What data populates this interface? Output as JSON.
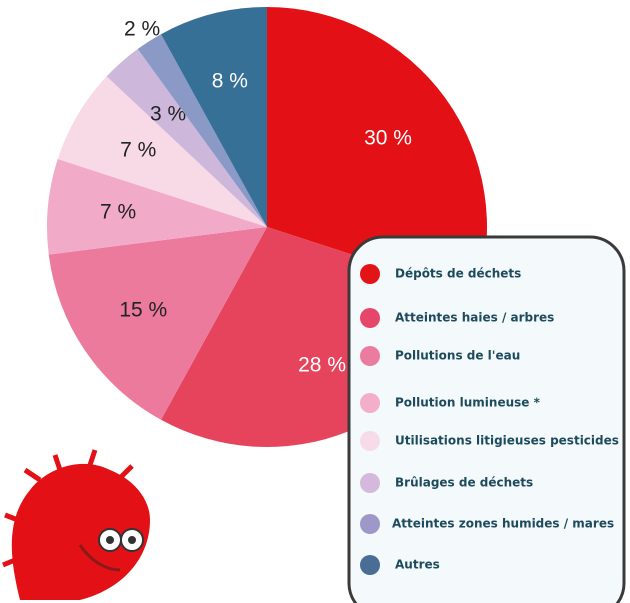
{
  "chart_data": {
    "type": "pie",
    "categories": [
      "Dépôts de déchets",
      "Atteintes haies / arbres",
      "Pollutions de l'eau",
      "Pollution lumineuse *",
      "Utilisations litigieuses pesticides",
      "Brûlages de déchets",
      "Atteintes zones humides / mares",
      "Autres"
    ],
    "values": [
      30,
      28,
      15,
      7,
      7,
      3,
      2,
      8
    ],
    "value_labels": [
      "30 %",
      "28 %",
      "15 %",
      "7 %",
      "7 %",
      "3 %",
      "2 %",
      "8 %"
    ],
    "colors": [
      "#e31116",
      "#e5445c",
      "#ec7a9d",
      "#f1abc8",
      "#f8d9e6",
      "#cdb8dc",
      "#8a99c6",
      "#377096"
    ],
    "legend_colors": [
      "#e31416",
      "#e5466a",
      "#ec7ba0",
      "#f2aecb",
      "#f8dbe8",
      "#d5b9dc",
      "#9d98c8",
      "#4a6d96"
    ]
  }
}
